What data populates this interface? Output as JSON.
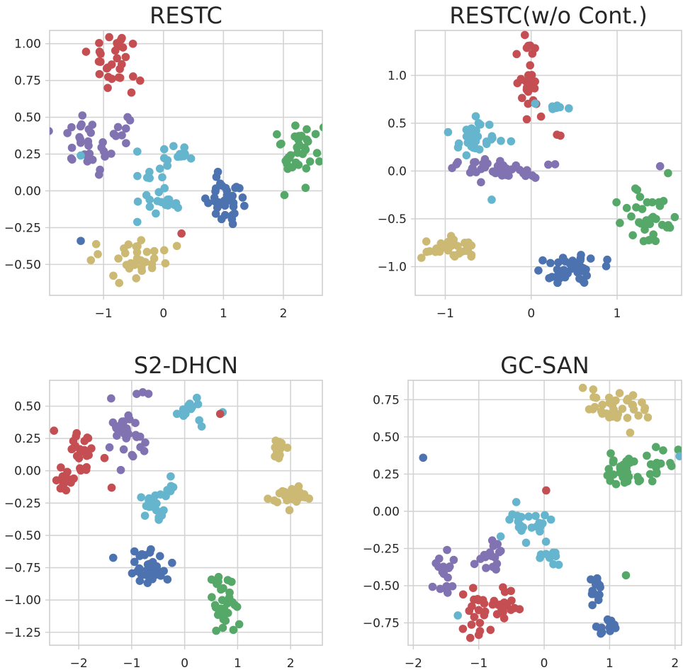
{
  "chart_data": [
    {
      "type": "scatter",
      "title": "RESTC",
      "xlim": [
        -1.9,
        2.65
      ],
      "ylim": [
        -0.71,
        1.09
      ],
      "xticks": [
        -1,
        0,
        1,
        2
      ],
      "yticks": [
        -0.5,
        -0.25,
        0.0,
        0.25,
        0.5,
        0.75,
        1.0
      ],
      "xtick_labels": [
        "−1",
        "0",
        "1",
        "2"
      ],
      "ytick_labels": [
        "−0.50",
        "−0.25",
        "0.00",
        "0.25",
        "0.50",
        "0.75",
        "1.00"
      ],
      "grid": true,
      "legend": "none",
      "clusters": [
        {
          "color": "#c44e52",
          "n": 30,
          "cx": -0.8,
          "cy": 0.88,
          "sx": 0.25,
          "sy": 0.08
        },
        {
          "color": "#8172b2",
          "n": 30,
          "cx": -1.3,
          "cy": 0.28,
          "sx": 0.25,
          "sy": 0.12
        },
        {
          "color": "#8172b2",
          "n": 6,
          "cx": -0.65,
          "cy": 0.45,
          "sx": 0.06,
          "sy": 0.07
        },
        {
          "color": "#64b5cd",
          "n": 28,
          "cx": -0.1,
          "cy": 0.04,
          "sx": 0.18,
          "sy": 0.12
        },
        {
          "color": "#64b5cd",
          "n": 9,
          "cx": 0.35,
          "cy": 0.23,
          "sx": 0.12,
          "sy": 0.03
        },
        {
          "color": "#4c72b0",
          "n": 38,
          "cx": 1.05,
          "cy": -0.08,
          "sx": 0.16,
          "sy": 0.1
        },
        {
          "color": "#55a868",
          "n": 36,
          "cx": 2.2,
          "cy": 0.25,
          "sx": 0.18,
          "sy": 0.11
        },
        {
          "color": "#ccb974",
          "n": 34,
          "cx": -0.55,
          "cy": -0.47,
          "sx": 0.3,
          "sy": 0.07
        }
      ],
      "points": [
        {
          "x": -1.38,
          "y": -0.34,
          "color": "#4c72b0"
        },
        {
          "x": 0.3,
          "y": -0.29,
          "color": "#c44e52"
        },
        {
          "x": -1.38,
          "y": 0.24,
          "color": "#64b5cd"
        }
      ]
    },
    {
      "type": "scatter",
      "title": "RESTC(w/o Cont.)",
      "xlim": [
        -1.35,
        1.75
      ],
      "ylim": [
        -1.3,
        1.47
      ],
      "xticks": [
        -1,
        0,
        1
      ],
      "yticks": [
        -1.0,
        -0.5,
        0.0,
        0.5,
        1.0
      ],
      "xtick_labels": [
        "−1",
        "0",
        "1"
      ],
      "ytick_labels": [
        "−1.0",
        "−0.5",
        "0.0",
        "0.5",
        "1.0"
      ],
      "grid": true,
      "legend": "none",
      "clusters": [
        {
          "color": "#c44e52",
          "n": 28,
          "cx": -0.04,
          "cy": 0.95,
          "sx": 0.06,
          "sy": 0.18
        },
        {
          "color": "#64b5cd",
          "n": 30,
          "cx": -0.65,
          "cy": 0.34,
          "sx": 0.16,
          "sy": 0.09
        },
        {
          "color": "#64b5cd",
          "n": 7,
          "cx": 0.3,
          "cy": 0.68,
          "sx": 0.07,
          "sy": 0.03
        },
        {
          "color": "#8172b2",
          "n": 40,
          "cx": -0.45,
          "cy": 0.02,
          "sx": 0.28,
          "sy": 0.05
        },
        {
          "color": "#55a868",
          "n": 36,
          "cx": 1.38,
          "cy": -0.5,
          "sx": 0.18,
          "sy": 0.14
        },
        {
          "color": "#4c72b0",
          "n": 42,
          "cx": 0.4,
          "cy": -1.02,
          "sx": 0.22,
          "sy": 0.08
        },
        {
          "color": "#ccb974",
          "n": 34,
          "cx": -0.97,
          "cy": -0.82,
          "sx": 0.14,
          "sy": 0.06
        }
      ],
      "points": [
        {
          "x": 0.3,
          "y": 0.38,
          "color": "#c44e52"
        },
        {
          "x": 0.34,
          "y": 0.37,
          "color": "#c44e52"
        },
        {
          "x": -0.46,
          "y": -0.3,
          "color": "#64b5cd"
        },
        {
          "x": 1.5,
          "y": 0.05,
          "color": "#8172b2"
        }
      ]
    },
    {
      "type": "scatter",
      "title": "S2-DHCN",
      "xlim": [
        -2.55,
        2.6
      ],
      "ylim": [
        -1.35,
        0.7
      ],
      "xticks": [
        -2,
        -1,
        0,
        1,
        2
      ],
      "yticks": [
        -1.25,
        -1.0,
        -0.75,
        -0.5,
        -0.25,
        0.0,
        0.25,
        0.5
      ],
      "xtick_labels": [
        "−2",
        "−1",
        "0",
        "1",
        "2"
      ],
      "ytick_labels": [
        "−1.25",
        "−1.00",
        "−0.75",
        "−0.50",
        "−0.25",
        "0.00",
        "0.25",
        "0.50"
      ],
      "grid": true,
      "legend": "none",
      "clusters": [
        {
          "color": "#c44e52",
          "n": 26,
          "cx": -1.95,
          "cy": 0.08,
          "sx": 0.2,
          "sy": 0.12
        },
        {
          "color": "#c44e52",
          "n": 12,
          "cx": -2.3,
          "cy": -0.06,
          "sx": 0.08,
          "sy": 0.04
        },
        {
          "color": "#8172b2",
          "n": 34,
          "cx": -1.05,
          "cy": 0.32,
          "sx": 0.17,
          "sy": 0.16
        },
        {
          "color": "#64b5cd",
          "n": 18,
          "cx": -0.6,
          "cy": -0.28,
          "sx": 0.14,
          "sy": 0.05
        },
        {
          "color": "#64b5cd",
          "n": 6,
          "cx": -0.3,
          "cy": -0.14,
          "sx": 0.06,
          "sy": 0.05
        },
        {
          "color": "#64b5cd",
          "n": 14,
          "cx": 0.15,
          "cy": 0.48,
          "sx": 0.25,
          "sy": 0.06
        },
        {
          "color": "#4c72b0",
          "n": 36,
          "cx": -0.7,
          "cy": -0.76,
          "sx": 0.22,
          "sy": 0.08
        },
        {
          "color": "#55a868",
          "n": 34,
          "cx": 0.8,
          "cy": -1.05,
          "sx": 0.14,
          "sy": 0.12
        },
        {
          "color": "#ccb974",
          "n": 12,
          "cx": 1.77,
          "cy": 0.18,
          "sx": 0.07,
          "sy": 0.06
        },
        {
          "color": "#ccb974",
          "n": 30,
          "cx": 2.0,
          "cy": -0.2,
          "sx": 0.2,
          "sy": 0.04
        }
      ],
      "points": [
        {
          "x": 0.67,
          "y": 0.44,
          "color": "#c44e52"
        }
      ]
    },
    {
      "type": "scatter",
      "title": "GC-SAN",
      "xlim": [
        -2.08,
        2.1
      ],
      "ylim": [
        -0.9,
        0.88
      ],
      "xticks": [
        -2,
        -1,
        0,
        1,
        2
      ],
      "yticks": [
        -0.75,
        -0.5,
        -0.25,
        0.0,
        0.25,
        0.5,
        0.75
      ],
      "xtick_labels": [
        "−2",
        "−1",
        "0",
        "1",
        "2"
      ],
      "ytick_labels": [
        "−0.75",
        "−0.50",
        "−0.25",
        "0.00",
        "0.25",
        "0.50",
        "0.75"
      ],
      "grid": true,
      "legend": "none",
      "clusters": [
        {
          "color": "#ccb974",
          "n": 36,
          "cx": 1.15,
          "cy": 0.7,
          "sx": 0.25,
          "sy": 0.06
        },
        {
          "color": "#55a868",
          "n": 30,
          "cx": 1.2,
          "cy": 0.25,
          "sx": 0.12,
          "sy": 0.06
        },
        {
          "color": "#55a868",
          "n": 14,
          "cx": 1.75,
          "cy": 0.32,
          "sx": 0.1,
          "sy": 0.05
        },
        {
          "color": "#64b5cd",
          "n": 24,
          "cx": -0.25,
          "cy": -0.08,
          "sx": 0.17,
          "sy": 0.06
        },
        {
          "color": "#64b5cd",
          "n": 12,
          "cx": 0.1,
          "cy": -0.3,
          "sx": 0.1,
          "sy": 0.04
        },
        {
          "color": "#8172b2",
          "n": 18,
          "cx": -1.5,
          "cy": -0.4,
          "sx": 0.12,
          "sy": 0.09
        },
        {
          "color": "#8172b2",
          "n": 18,
          "cx": -0.85,
          "cy": -0.3,
          "sx": 0.12,
          "sy": 0.05
        },
        {
          "color": "#c44e52",
          "n": 20,
          "cx": -1.05,
          "cy": -0.7,
          "sx": 0.12,
          "sy": 0.08
        },
        {
          "color": "#c44e52",
          "n": 18,
          "cx": -0.6,
          "cy": -0.63,
          "sx": 0.1,
          "sy": 0.05
        },
        {
          "color": "#4c72b0",
          "n": 14,
          "cx": 0.8,
          "cy": -0.52,
          "sx": 0.06,
          "sy": 0.05
        },
        {
          "color": "#4c72b0",
          "n": 14,
          "cx": 0.98,
          "cy": -0.78,
          "sx": 0.08,
          "sy": 0.04
        }
      ],
      "points": [
        {
          "x": -1.85,
          "y": 0.36,
          "color": "#4c72b0"
        },
        {
          "x": 0.03,
          "y": 0.14,
          "color": "#c44e52"
        },
        {
          "x": 1.25,
          "y": -0.43,
          "color": "#55a868"
        },
        {
          "x": 2.07,
          "y": 0.37,
          "color": "#64b5cd"
        },
        {
          "x": -1.32,
          "y": -0.7,
          "color": "#64b5cd"
        }
      ]
    }
  ]
}
